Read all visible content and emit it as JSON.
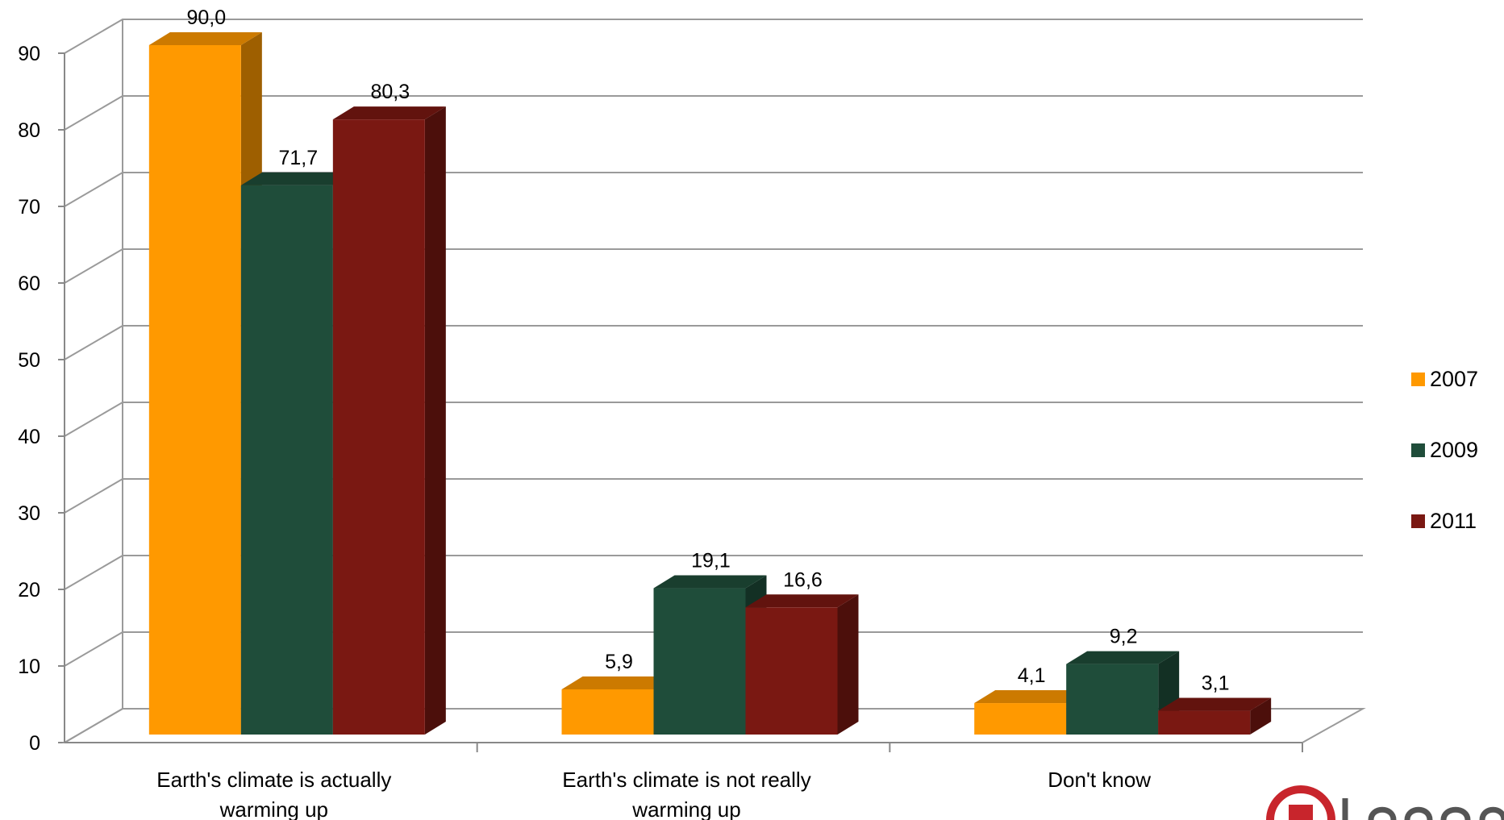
{
  "chart_data": {
    "type": "bar",
    "style": "3d-clustered-column",
    "categories": [
      [
        "Earth's climate is actually",
        "warming up"
      ],
      [
        "Earth's climate is not really",
        "warming up"
      ],
      [
        "Don't know"
      ]
    ],
    "series": [
      {
        "name": "2007",
        "values": [
          90.0,
          5.9,
          4.1
        ],
        "labels": [
          "90,0",
          "5,9",
          "4,1"
        ],
        "color": "#ff9900"
      },
      {
        "name": "2009",
        "values": [
          71.7,
          19.1,
          9.2
        ],
        "labels": [
          "71,7",
          "19,1",
          "9,2"
        ],
        "color": "#1f4d3a"
      },
      {
        "name": "2011",
        "values": [
          80.3,
          16.6,
          3.1
        ],
        "labels": [
          "80,3",
          "16,6",
          "3,1"
        ],
        "color": "#7a1812"
      }
    ],
    "yticks": [
      "0",
      "10",
      "20",
      "30",
      "40",
      "50",
      "60",
      "70",
      "80",
      "90"
    ],
    "ylim": [
      0,
      90
    ],
    "grid": true,
    "legend_position": "right"
  }
}
